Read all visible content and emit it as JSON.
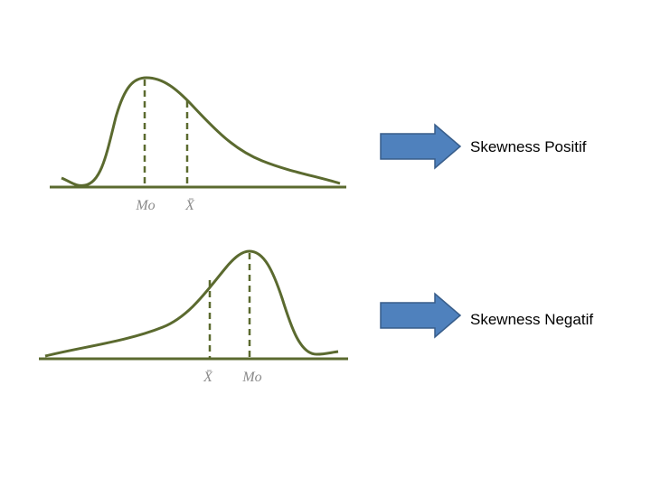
{
  "diagrams": [
    {
      "labels": [
        "Mo",
        "X̄"
      ],
      "caption": "Skewness Positif"
    },
    {
      "labels": [
        "X̄",
        "Mo"
      ],
      "caption": "Skewness Negatif"
    }
  ]
}
